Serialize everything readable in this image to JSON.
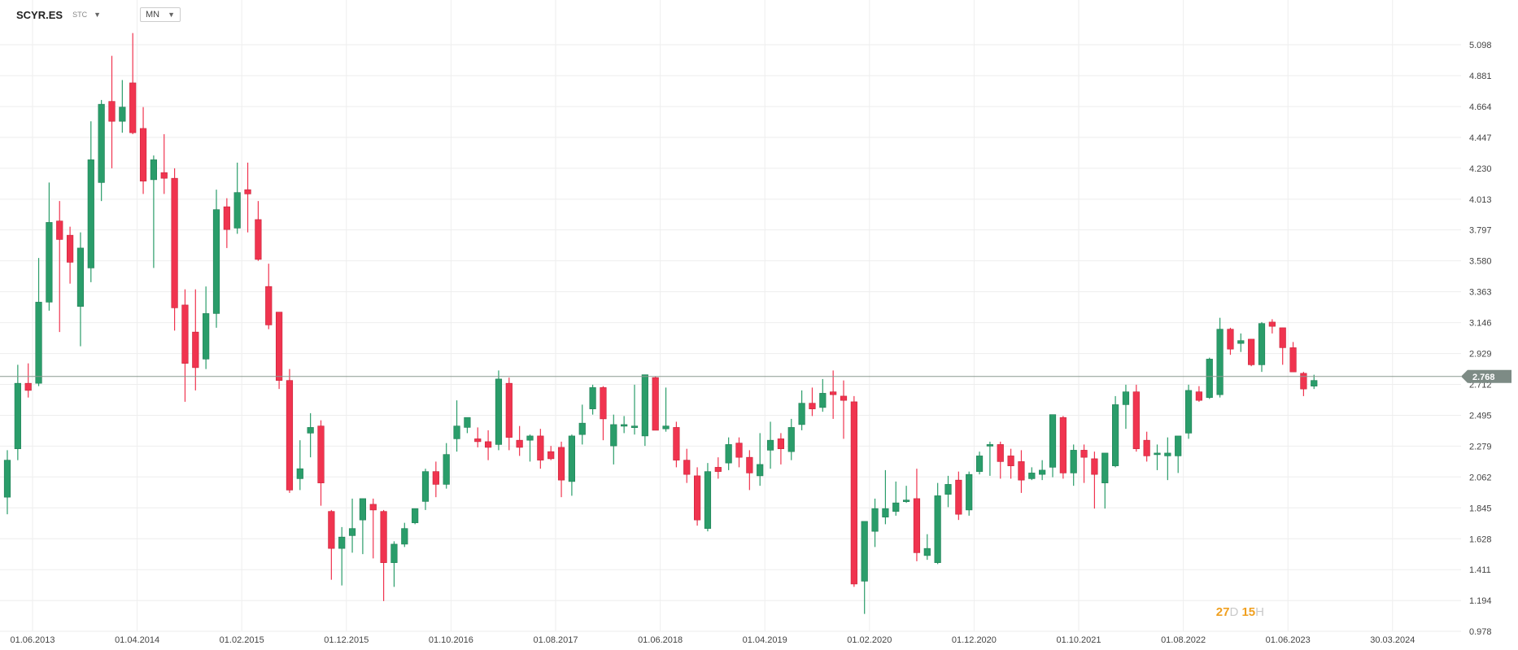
{
  "toolbar": {
    "symbol": "SCYR.ES",
    "exchange": "STC",
    "timeframe": "MN"
  },
  "timer": {
    "days": "27",
    "days_unit": "D",
    "hours": "15",
    "hours_unit": "H"
  },
  "colors": {
    "up": "#2a9d6a",
    "down": "#f0344f",
    "grid": "#eeeeee",
    "price_line": "#8a9a90",
    "price_tag": "#7d8b85"
  },
  "chart_data": {
    "type": "candlestick",
    "title": "",
    "ylim": [
      0.978,
      5.2
    ],
    "y_ticks": [
      "5.098",
      "4.881",
      "4.664",
      "4.447",
      "4.230",
      "4.013",
      "3.797",
      "3.580",
      "3.363",
      "3.146",
      "2.929",
      "2.712",
      "2.495",
      "2.279",
      "2.062",
      "1.845",
      "1.628",
      "1.411",
      "1.194",
      "0.978"
    ],
    "x_ticks": [
      "01.06.2013",
      "01.04.2014",
      "01.02.2015",
      "01.12.2015",
      "01.10.2016",
      "01.08.2017",
      "01.06.2018",
      "01.04.2019",
      "01.02.2020",
      "01.12.2020",
      "01.10.2021",
      "01.08.2022",
      "01.06.2023",
      "30.03.2024"
    ],
    "last_price": "2.768",
    "last_price_value": 2.768,
    "candles": [
      {
        "o": 1.92,
        "h": 2.25,
        "l": 1.8,
        "c": 2.18
      },
      {
        "o": 2.26,
        "h": 2.85,
        "l": 2.18,
        "c": 2.72
      },
      {
        "o": 2.72,
        "h": 2.86,
        "l": 2.62,
        "c": 2.67
      },
      {
        "o": 2.72,
        "h": 3.6,
        "l": 2.7,
        "c": 3.29
      },
      {
        "o": 3.29,
        "h": 4.13,
        "l": 3.23,
        "c": 3.85
      },
      {
        "o": 3.86,
        "h": 4.0,
        "l": 3.08,
        "c": 3.73
      },
      {
        "o": 3.76,
        "h": 3.82,
        "l": 3.42,
        "c": 3.57
      },
      {
        "o": 3.26,
        "h": 3.78,
        "l": 2.98,
        "c": 3.67
      },
      {
        "o": 3.53,
        "h": 4.56,
        "l": 3.43,
        "c": 4.29
      },
      {
        "o": 4.13,
        "h": 4.71,
        "l": 4.0,
        "c": 4.68
      },
      {
        "o": 4.7,
        "h": 5.02,
        "l": 4.23,
        "c": 4.56
      },
      {
        "o": 4.56,
        "h": 4.85,
        "l": 4.48,
        "c": 4.66
      },
      {
        "o": 4.83,
        "h": 5.18,
        "l": 4.47,
        "c": 4.48
      },
      {
        "o": 4.51,
        "h": 4.66,
        "l": 4.05,
        "c": 4.14
      },
      {
        "o": 4.15,
        "h": 4.32,
        "l": 3.53,
        "c": 4.29
      },
      {
        "o": 4.2,
        "h": 4.47,
        "l": 4.05,
        "c": 4.16
      },
      {
        "o": 4.16,
        "h": 4.23,
        "l": 3.09,
        "c": 3.25
      },
      {
        "o": 3.27,
        "h": 3.38,
        "l": 2.59,
        "c": 2.86
      },
      {
        "o": 3.08,
        "h": 3.38,
        "l": 2.67,
        "c": 2.83
      },
      {
        "o": 2.89,
        "h": 3.4,
        "l": 2.82,
        "c": 3.21
      },
      {
        "o": 3.21,
        "h": 4.08,
        "l": 3.11,
        "c": 3.94
      },
      {
        "o": 3.96,
        "h": 4.02,
        "l": 3.67,
        "c": 3.8
      },
      {
        "o": 3.81,
        "h": 4.27,
        "l": 3.77,
        "c": 4.06
      },
      {
        "o": 4.08,
        "h": 4.27,
        "l": 3.78,
        "c": 4.05
      },
      {
        "o": 3.87,
        "h": 4.0,
        "l": 3.58,
        "c": 3.59
      },
      {
        "o": 3.4,
        "h": 3.56,
        "l": 3.1,
        "c": 3.13
      },
      {
        "o": 3.22,
        "h": 3.22,
        "l": 2.68,
        "c": 2.74
      },
      {
        "o": 2.74,
        "h": 2.82,
        "l": 1.95,
        "c": 1.97
      },
      {
        "o": 2.05,
        "h": 2.32,
        "l": 1.97,
        "c": 2.12
      },
      {
        "o": 2.37,
        "h": 2.51,
        "l": 2.2,
        "c": 2.41
      },
      {
        "o": 2.42,
        "h": 2.46,
        "l": 1.86,
        "c": 2.02
      },
      {
        "o": 1.82,
        "h": 1.83,
        "l": 1.34,
        "c": 1.56
      },
      {
        "o": 1.56,
        "h": 1.71,
        "l": 1.3,
        "c": 1.64
      },
      {
        "o": 1.65,
        "h": 1.91,
        "l": 1.53,
        "c": 1.7
      },
      {
        "o": 1.76,
        "h": 1.91,
        "l": 1.52,
        "c": 1.91
      },
      {
        "o": 1.87,
        "h": 1.91,
        "l": 1.49,
        "c": 1.83
      },
      {
        "o": 1.82,
        "h": 1.83,
        "l": 1.19,
        "c": 1.46
      },
      {
        "o": 1.46,
        "h": 1.61,
        "l": 1.29,
        "c": 1.59
      },
      {
        "o": 1.59,
        "h": 1.74,
        "l": 1.57,
        "c": 1.7
      },
      {
        "o": 1.74,
        "h": 1.84,
        "l": 1.73,
        "c": 1.84
      },
      {
        "o": 1.89,
        "h": 2.12,
        "l": 1.83,
        "c": 2.1
      },
      {
        "o": 2.1,
        "h": 2.17,
        "l": 1.92,
        "c": 2.01
      },
      {
        "o": 2.01,
        "h": 2.3,
        "l": 1.98,
        "c": 2.22
      },
      {
        "o": 2.33,
        "h": 2.6,
        "l": 2.24,
        "c": 2.42
      },
      {
        "o": 2.41,
        "h": 2.48,
        "l": 2.37,
        "c": 2.48
      },
      {
        "o": 2.33,
        "h": 2.41,
        "l": 2.27,
        "c": 2.31
      },
      {
        "o": 2.31,
        "h": 2.39,
        "l": 2.18,
        "c": 2.27
      },
      {
        "o": 2.29,
        "h": 2.81,
        "l": 2.25,
        "c": 2.75
      },
      {
        "o": 2.72,
        "h": 2.76,
        "l": 2.25,
        "c": 2.34
      },
      {
        "o": 2.32,
        "h": 2.42,
        "l": 2.21,
        "c": 2.27
      },
      {
        "o": 2.32,
        "h": 2.36,
        "l": 2.17,
        "c": 2.35
      },
      {
        "o": 2.35,
        "h": 2.4,
        "l": 2.12,
        "c": 2.18
      },
      {
        "o": 2.24,
        "h": 2.28,
        "l": 2.18,
        "c": 2.19
      },
      {
        "o": 2.27,
        "h": 2.31,
        "l": 1.92,
        "c": 2.04
      },
      {
        "o": 2.03,
        "h": 2.36,
        "l": 1.93,
        "c": 2.35
      },
      {
        "o": 2.36,
        "h": 2.57,
        "l": 2.29,
        "c": 2.44
      },
      {
        "o": 2.54,
        "h": 2.71,
        "l": 2.5,
        "c": 2.69
      },
      {
        "o": 2.69,
        "h": 2.7,
        "l": 2.32,
        "c": 2.47
      },
      {
        "o": 2.28,
        "h": 2.5,
        "l": 2.15,
        "c": 2.43
      },
      {
        "o": 2.43,
        "h": 2.49,
        "l": 2.37,
        "c": 2.43
      },
      {
        "o": 2.41,
        "h": 2.71,
        "l": 2.36,
        "c": 2.42
      },
      {
        "o": 2.35,
        "h": 2.78,
        "l": 2.28,
        "c": 2.78
      },
      {
        "o": 2.76,
        "h": 2.77,
        "l": 2.42,
        "c": 2.39
      },
      {
        "o": 2.4,
        "h": 2.69,
        "l": 2.38,
        "c": 2.42
      },
      {
        "o": 2.41,
        "h": 2.45,
        "l": 2.13,
        "c": 2.18
      },
      {
        "o": 2.18,
        "h": 2.26,
        "l": 2.02,
        "c": 2.08
      },
      {
        "o": 2.07,
        "h": 2.13,
        "l": 1.72,
        "c": 1.76
      },
      {
        "o": 1.7,
        "h": 2.16,
        "l": 1.68,
        "c": 2.1
      },
      {
        "o": 2.13,
        "h": 2.2,
        "l": 2.05,
        "c": 2.1
      },
      {
        "o": 2.16,
        "h": 2.34,
        "l": 2.11,
        "c": 2.29
      },
      {
        "o": 2.3,
        "h": 2.34,
        "l": 2.13,
        "c": 2.2
      },
      {
        "o": 2.2,
        "h": 2.25,
        "l": 1.97,
        "c": 2.09
      },
      {
        "o": 2.07,
        "h": 2.37,
        "l": 2.0,
        "c": 2.15
      },
      {
        "o": 2.25,
        "h": 2.45,
        "l": 2.12,
        "c": 2.32
      },
      {
        "o": 2.33,
        "h": 2.37,
        "l": 2.15,
        "c": 2.26
      },
      {
        "o": 2.24,
        "h": 2.47,
        "l": 2.18,
        "c": 2.41
      },
      {
        "o": 2.43,
        "h": 2.67,
        "l": 2.39,
        "c": 2.58
      },
      {
        "o": 2.58,
        "h": 2.69,
        "l": 2.49,
        "c": 2.54
      },
      {
        "o": 2.55,
        "h": 2.75,
        "l": 2.52,
        "c": 2.65
      },
      {
        "o": 2.66,
        "h": 2.81,
        "l": 2.47,
        "c": 2.64
      },
      {
        "o": 2.63,
        "h": 2.74,
        "l": 2.33,
        "c": 2.6
      },
      {
        "o": 2.59,
        "h": 2.63,
        "l": 1.29,
        "c": 1.31
      },
      {
        "o": 1.33,
        "h": 1.73,
        "l": 1.1,
        "c": 1.75
      },
      {
        "o": 1.68,
        "h": 1.91,
        "l": 1.57,
        "c": 1.84
      },
      {
        "o": 1.78,
        "h": 2.11,
        "l": 1.73,
        "c": 1.84
      },
      {
        "o": 1.82,
        "h": 2.03,
        "l": 1.79,
        "c": 1.88
      },
      {
        "o": 1.89,
        "h": 2.0,
        "l": 1.88,
        "c": 1.9
      },
      {
        "o": 1.91,
        "h": 2.12,
        "l": 1.47,
        "c": 1.53
      },
      {
        "o": 1.51,
        "h": 1.66,
        "l": 1.48,
        "c": 1.56
      },
      {
        "o": 1.46,
        "h": 2.02,
        "l": 1.45,
        "c": 1.93
      },
      {
        "o": 1.94,
        "h": 2.07,
        "l": 1.85,
        "c": 2.01
      },
      {
        "o": 2.04,
        "h": 2.1,
        "l": 1.76,
        "c": 1.8
      },
      {
        "o": 1.83,
        "h": 2.1,
        "l": 1.79,
        "c": 2.08
      },
      {
        "o": 2.1,
        "h": 2.24,
        "l": 2.08,
        "c": 2.21
      },
      {
        "o": 2.28,
        "h": 2.31,
        "l": 2.07,
        "c": 2.29
      },
      {
        "o": 2.29,
        "h": 2.31,
        "l": 2.05,
        "c": 2.17
      },
      {
        "o": 2.21,
        "h": 2.26,
        "l": 2.05,
        "c": 2.14
      },
      {
        "o": 2.17,
        "h": 2.25,
        "l": 1.95,
        "c": 2.04
      },
      {
        "o": 2.05,
        "h": 2.13,
        "l": 2.04,
        "c": 2.09
      },
      {
        "o": 2.08,
        "h": 2.18,
        "l": 2.04,
        "c": 2.11
      },
      {
        "o": 2.13,
        "h": 2.5,
        "l": 2.06,
        "c": 2.5
      },
      {
        "o": 2.48,
        "h": 2.49,
        "l": 2.05,
        "c": 2.09
      },
      {
        "o": 2.09,
        "h": 2.29,
        "l": 2.0,
        "c": 2.25
      },
      {
        "o": 2.25,
        "h": 2.29,
        "l": 2.02,
        "c": 2.2
      },
      {
        "o": 2.19,
        "h": 2.24,
        "l": 1.84,
        "c": 2.08
      },
      {
        "o": 2.02,
        "h": 2.21,
        "l": 1.84,
        "c": 2.23
      },
      {
        "o": 2.14,
        "h": 2.63,
        "l": 2.13,
        "c": 2.57
      },
      {
        "o": 2.57,
        "h": 2.71,
        "l": 2.4,
        "c": 2.66
      },
      {
        "o": 2.66,
        "h": 2.71,
        "l": 2.24,
        "c": 2.26
      },
      {
        "o": 2.32,
        "h": 2.38,
        "l": 2.17,
        "c": 2.21
      },
      {
        "o": 2.22,
        "h": 2.29,
        "l": 2.11,
        "c": 2.23
      },
      {
        "o": 2.21,
        "h": 2.34,
        "l": 2.04,
        "c": 2.23
      },
      {
        "o": 2.21,
        "h": 2.34,
        "l": 2.09,
        "c": 2.35
      },
      {
        "o": 2.37,
        "h": 2.71,
        "l": 2.33,
        "c": 2.67
      },
      {
        "o": 2.66,
        "h": 2.7,
        "l": 2.59,
        "c": 2.6
      },
      {
        "o": 2.62,
        "h": 2.9,
        "l": 2.61,
        "c": 2.89
      },
      {
        "o": 2.64,
        "h": 3.18,
        "l": 2.62,
        "c": 3.1
      },
      {
        "o": 3.1,
        "h": 3.11,
        "l": 2.92,
        "c": 2.96
      },
      {
        "o": 3.0,
        "h": 3.07,
        "l": 2.94,
        "c": 3.02
      },
      {
        "o": 3.03,
        "h": 3.03,
        "l": 2.84,
        "c": 2.85
      },
      {
        "o": 2.85,
        "h": 3.15,
        "l": 2.8,
        "c": 3.14
      },
      {
        "o": 3.15,
        "h": 3.17,
        "l": 3.07,
        "c": 3.12
      },
      {
        "o": 3.11,
        "h": 3.11,
        "l": 2.85,
        "c": 2.97
      },
      {
        "o": 2.97,
        "h": 3.01,
        "l": 2.8,
        "c": 2.8
      },
      {
        "o": 2.79,
        "h": 2.8,
        "l": 2.63,
        "c": 2.68
      },
      {
        "o": 2.7,
        "h": 2.78,
        "l": 2.68,
        "c": 2.74
      }
    ]
  }
}
